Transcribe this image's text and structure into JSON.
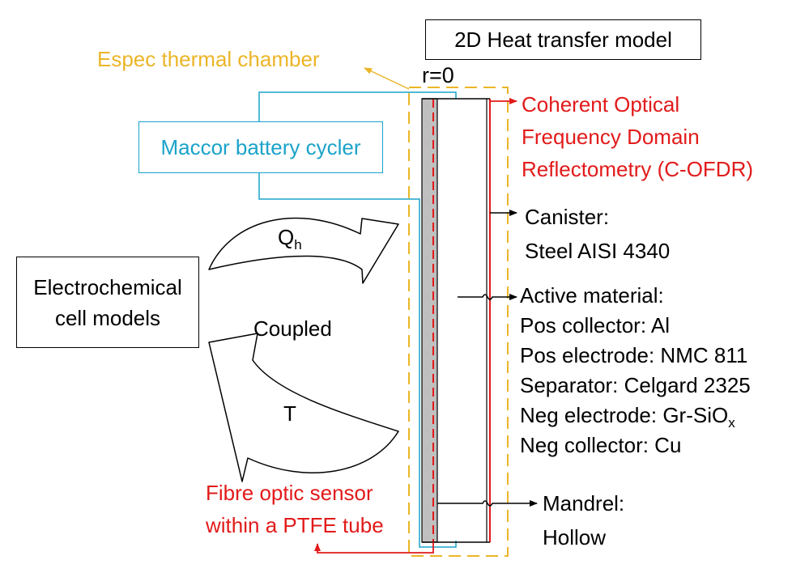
{
  "title": "2D Heat transfer model",
  "r_label": "r=0",
  "chamber_label": "Espec thermal chamber",
  "cycler_label": "Maccor battery cycler",
  "cofdr": [
    "Coherent Optical",
    "Frequency Domain",
    "Reflectometry (C-OFDR)"
  ],
  "canister": [
    "Canister:",
    "Steel AISI 4340"
  ],
  "active": {
    "heading": "Active material:",
    "items": [
      "Pos collector: Al",
      "Pos electrode: NMC 811",
      "Separator: Celgard 2325"
    ],
    "neg_electrode": "Neg electrode: Gr-SiO",
    "neg_electrode_sub": "x",
    "neg_collector": "Neg collector: Cu"
  },
  "mandrel": [
    "Mandrel:",
    "Hollow"
  ],
  "sensor": [
    "Fibre optic sensor",
    "within a PTFE tube"
  ],
  "cell_models": [
    "Electrochemical",
    "cell models"
  ],
  "coupled": "Coupled",
  "qh_main": "Q",
  "qh_sub": "h",
  "t_label": "T",
  "colors": {
    "red": "#e21a1a",
    "gold": "#ecb528",
    "blue": "#1aa3c9",
    "grey": "#bfbfbf"
  }
}
